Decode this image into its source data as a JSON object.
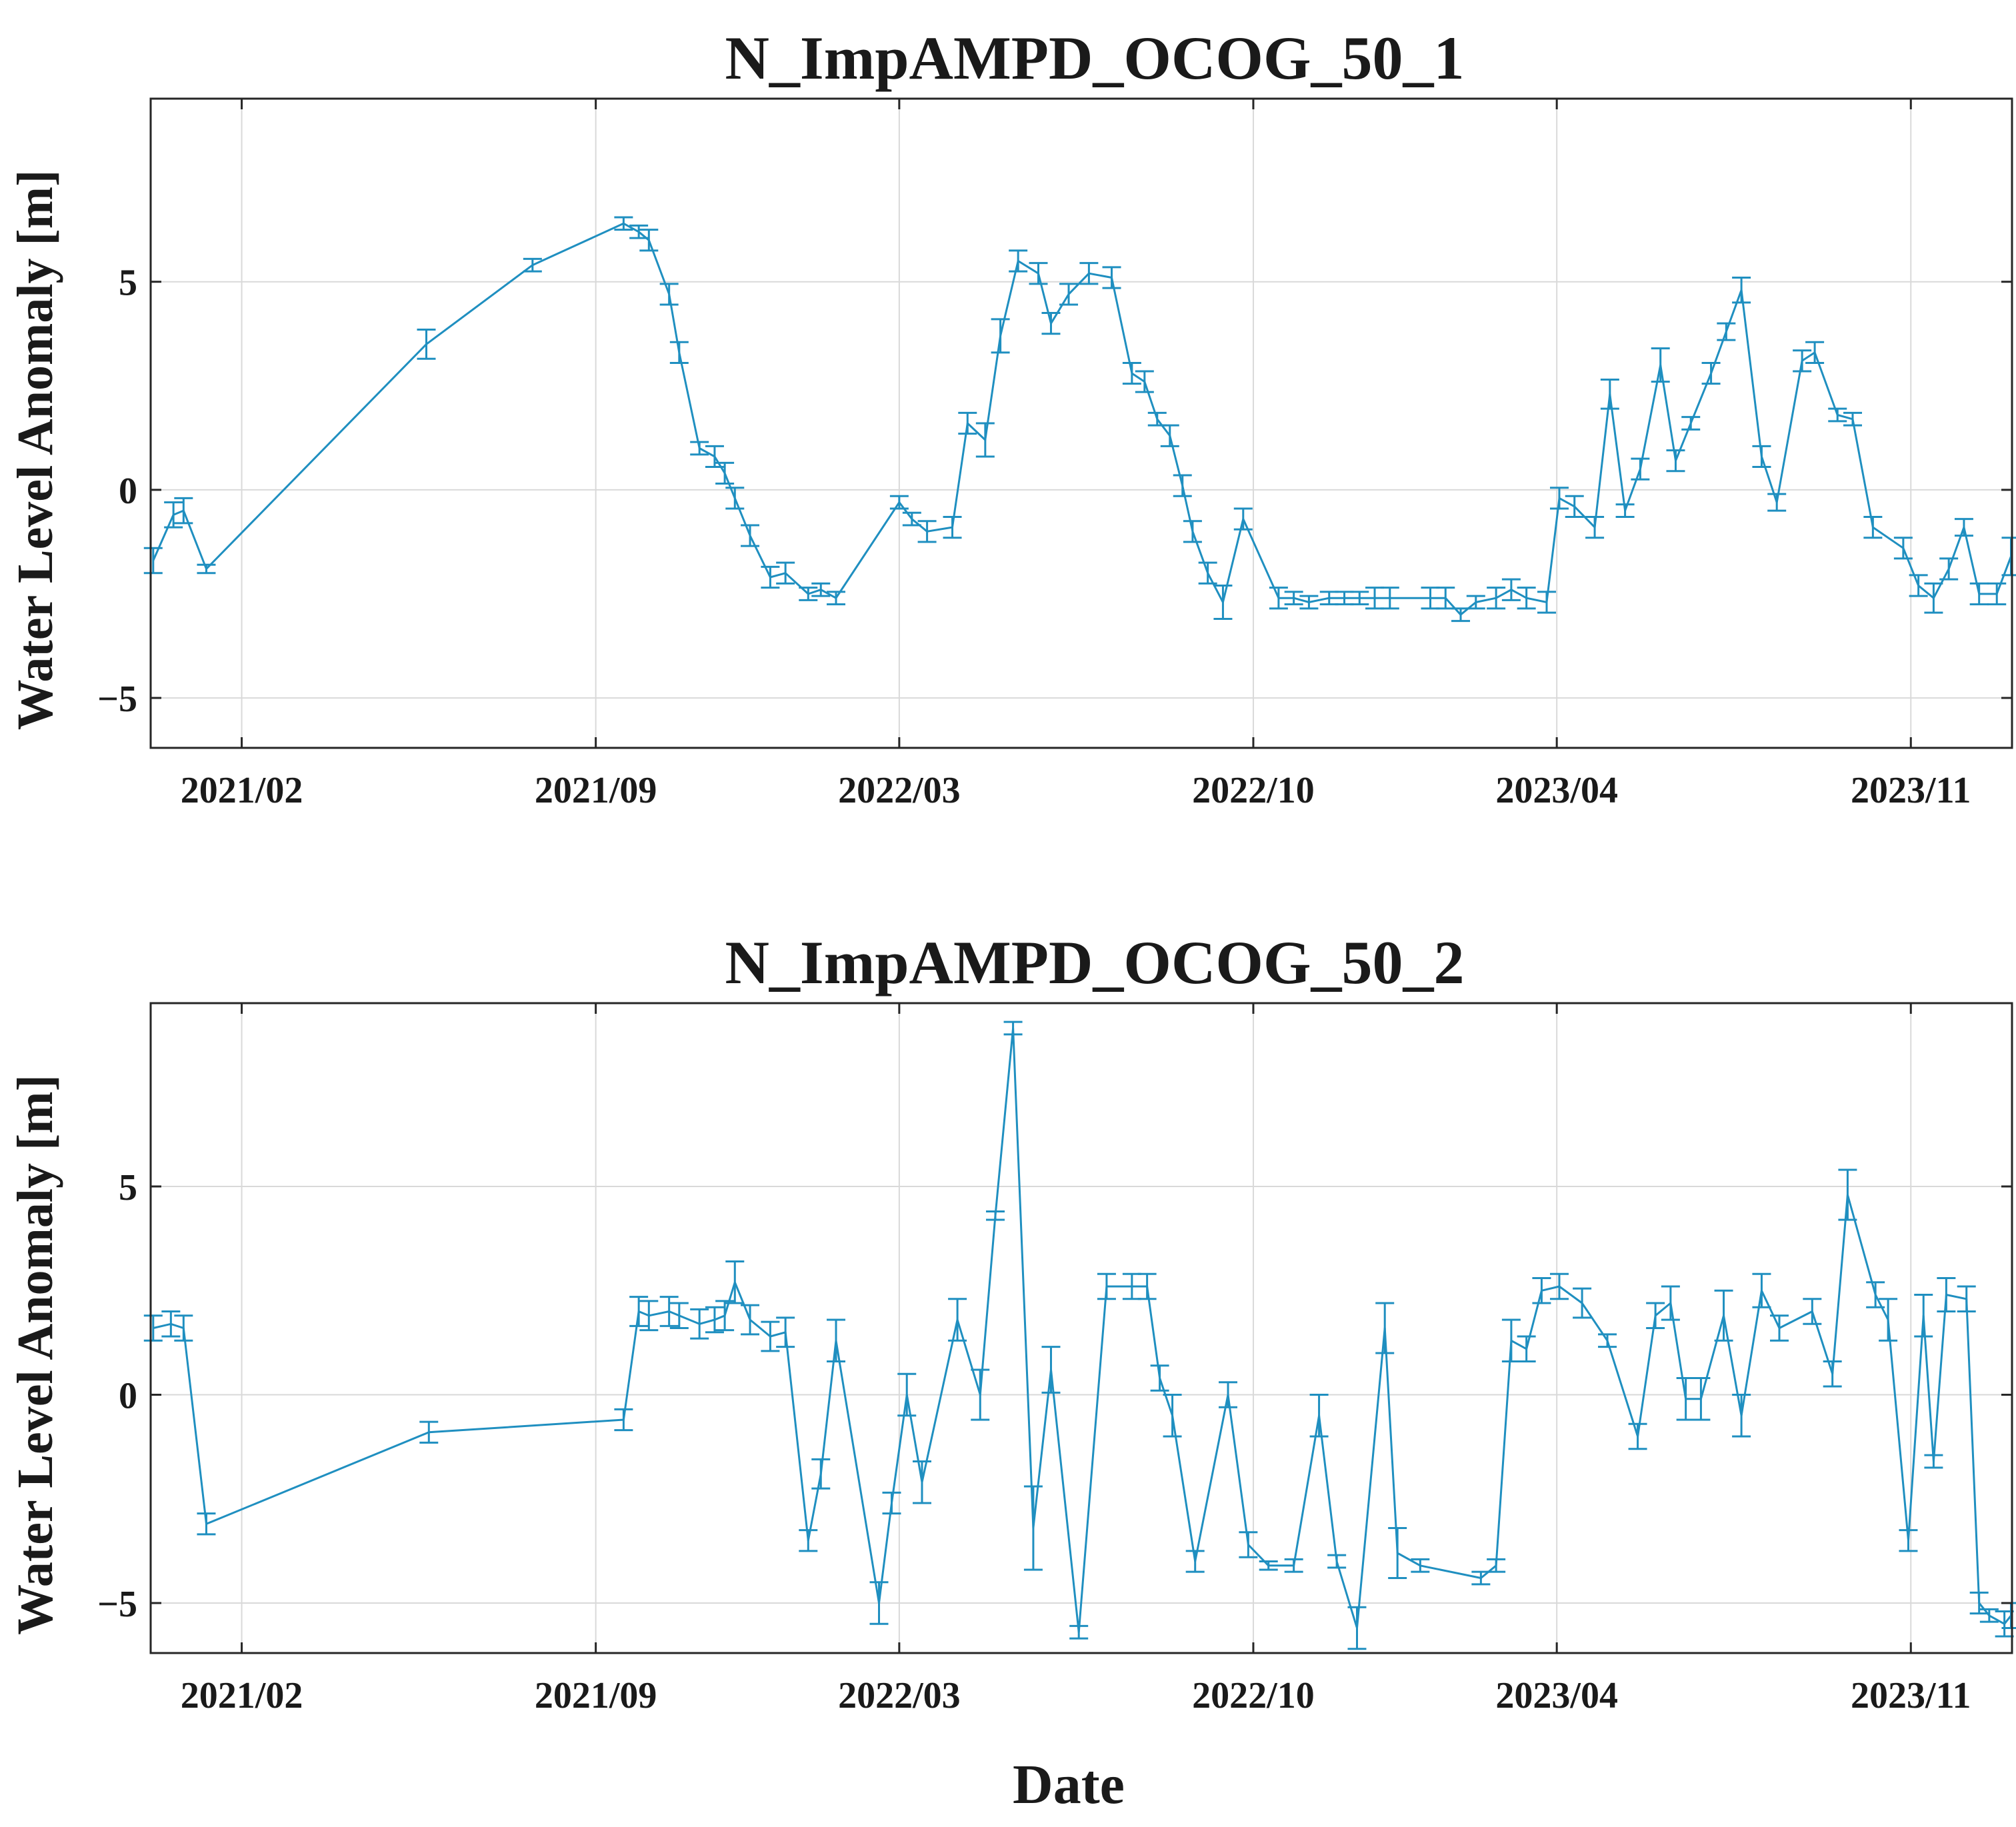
{
  "figure": {
    "xlabel": "Date"
  },
  "style": {
    "series_color": "#1f8fc0",
    "grid_color": "#d9d9d9",
    "axis_color": "#262626"
  },
  "chart_data": [
    {
      "type": "line",
      "title": "N_ImpAMPD_OCOG_50_1",
      "xlabel": "",
      "ylabel": "Water Level Anomaly [m]",
      "x_unit": "months since 2021-01",
      "xlim": [
        -0.8,
        36.0
      ],
      "ylim": [
        -6.2,
        9.4
      ],
      "yticks": [
        -5,
        0,
        5
      ],
      "xticks": [
        {
          "value": 1,
          "label": "2021/02"
        },
        {
          "value": 8,
          "label": "2021/09"
        },
        {
          "value": 14,
          "label": "2022/03"
        },
        {
          "value": 21,
          "label": "2022/10"
        },
        {
          "value": 27,
          "label": "2023/04"
        },
        {
          "value": 34,
          "label": "2023/11"
        }
      ],
      "grid": true,
      "series": [
        {
          "name": "N_ImpAMPD_OCOG_50_1",
          "x": [
            -0.75,
            -0.35,
            -0.15,
            0.3,
            4.65,
            6.75,
            8.55,
            8.85,
            9.05,
            9.45,
            9.65,
            10.05,
            10.35,
            10.55,
            10.75,
            11.05,
            11.45,
            11.75,
            12.2,
            12.45,
            12.75,
            14.0,
            14.25,
            14.55,
            15.05,
            15.35,
            15.7,
            16.0,
            16.35,
            16.75,
            17.0,
            17.35,
            17.75,
            18.2,
            18.6,
            18.85,
            19.1,
            19.35,
            19.6,
            19.8,
            20.1,
            20.4,
            20.8,
            21.5,
            21.8,
            22.1,
            22.5,
            22.8,
            23.1,
            23.4,
            23.7,
            24.5,
            24.8,
            25.1,
            25.4,
            25.8,
            26.1,
            26.4,
            26.8,
            27.05,
            27.35,
            27.75,
            28.05,
            28.35,
            28.65,
            29.05,
            29.35,
            29.65,
            30.05,
            30.35,
            30.65,
            31.05,
            31.35,
            31.85,
            32.1,
            32.55,
            32.85,
            33.25,
            33.85,
            34.15,
            34.45,
            34.75,
            35.05,
            35.35,
            35.7,
            35.98
          ],
          "y": [
            -1.7,
            -0.6,
            -0.5,
            -1.9,
            3.5,
            5.4,
            6.4,
            6.2,
            6.0,
            4.7,
            3.3,
            1.0,
            0.8,
            0.4,
            -0.2,
            -1.1,
            -2.1,
            -2.0,
            -2.5,
            -2.4,
            -2.6,
            -0.3,
            -0.7,
            -1.0,
            -0.9,
            1.6,
            1.2,
            3.7,
            5.5,
            5.2,
            4.0,
            4.7,
            5.2,
            5.1,
            2.8,
            2.6,
            1.7,
            1.3,
            0.1,
            -1.0,
            -2.0,
            -2.7,
            -0.7,
            -2.6,
            -2.6,
            -2.7,
            -2.6,
            -2.6,
            -2.6,
            -2.6,
            -2.6,
            -2.6,
            -2.6,
            -3.0,
            -2.7,
            -2.6,
            -2.4,
            -2.6,
            -2.7,
            -0.2,
            -0.4,
            -0.9,
            2.3,
            -0.5,
            0.5,
            3.0,
            0.7,
            1.6,
            2.8,
            3.8,
            4.8,
            0.8,
            -0.3,
            3.1,
            3.3,
            1.8,
            1.7,
            -0.9,
            -1.4,
            -2.3,
            -2.6,
            -1.9,
            -0.9,
            -2.5,
            -2.5,
            -1.6
          ],
          "err": [
            0.3,
            0.3,
            0.3,
            0.1,
            0.35,
            0.15,
            0.15,
            0.15,
            0.25,
            0.25,
            0.25,
            0.15,
            0.25,
            0.25,
            0.25,
            0.25,
            0.25,
            0.25,
            0.15,
            0.15,
            0.15,
            0.15,
            0.15,
            0.25,
            0.25,
            0.25,
            0.4,
            0.4,
            0.25,
            0.25,
            0.25,
            0.25,
            0.25,
            0.25,
            0.25,
            0.25,
            0.15,
            0.25,
            0.25,
            0.25,
            0.25,
            0.4,
            0.25,
            0.25,
            0.15,
            0.15,
            0.15,
            0.15,
            0.15,
            0.25,
            0.25,
            0.25,
            0.25,
            0.15,
            0.15,
            0.25,
            0.25,
            0.25,
            0.25,
            0.25,
            0.25,
            0.25,
            0.35,
            0.15,
            0.25,
            0.4,
            0.25,
            0.15,
            0.25,
            0.2,
            0.3,
            0.25,
            0.2,
            0.25,
            0.25,
            0.15,
            0.15,
            0.25,
            0.25,
            0.25,
            0.35,
            0.25,
            0.2,
            0.25,
            0.25,
            0.45
          ]
        }
      ]
    },
    {
      "type": "line",
      "title": "N_ImpAMPD_OCOG_50_2",
      "xlabel": "Date",
      "ylabel": "Water Level Anomaly [m]",
      "x_unit": "months since 2021-01",
      "xlim": [
        -0.8,
        36.0
      ],
      "ylim": [
        -6.2,
        9.4
      ],
      "yticks": [
        -5,
        0,
        5
      ],
      "xticks": [
        {
          "value": 1,
          "label": "2021/02"
        },
        {
          "value": 8,
          "label": "2021/09"
        },
        {
          "value": 14,
          "label": "2022/03"
        },
        {
          "value": 21,
          "label": "2022/10"
        },
        {
          "value": 27,
          "label": "2023/04"
        },
        {
          "value": 34,
          "label": "2023/11"
        }
      ],
      "grid": true,
      "series": [
        {
          "name": "N_ImpAMPD_OCOG_50_2",
          "x": [
            -0.75,
            -0.4,
            -0.15,
            0.3,
            4.7,
            8.55,
            8.85,
            9.05,
            9.45,
            9.65,
            10.05,
            10.35,
            10.55,
            10.75,
            11.05,
            11.45,
            11.75,
            12.2,
            12.45,
            12.75,
            13.6,
            13.85,
            14.15,
            14.45,
            15.15,
            15.6,
            15.9,
            16.25,
            16.65,
            17.0,
            17.55,
            18.1,
            18.6,
            18.9,
            19.15,
            19.4,
            19.85,
            20.5,
            20.9,
            21.3,
            21.8,
            22.3,
            22.65,
            23.05,
            23.6,
            23.85,
            24.3,
            25.5,
            25.8,
            26.1,
            26.4,
            26.7,
            27.05,
            27.5,
            28.0,
            28.6,
            28.95,
            29.25,
            29.55,
            29.85,
            30.3,
            30.65,
            31.05,
            31.4,
            32.05,
            32.45,
            32.75,
            33.3,
            33.55,
            33.95,
            34.25,
            34.45,
            34.7,
            35.1,
            35.35,
            35.55,
            35.85,
            35.98
          ],
          "y": [
            1.6,
            1.7,
            1.6,
            -3.1,
            -0.9,
            -0.6,
            2.0,
            1.9,
            2.0,
            1.9,
            1.7,
            1.8,
            1.9,
            2.7,
            1.8,
            1.4,
            1.5,
            -3.5,
            -1.9,
            1.3,
            -5.0,
            -2.6,
            0.0,
            -2.1,
            1.8,
            0.0,
            4.3,
            8.8,
            -3.2,
            0.6,
            -5.7,
            2.6,
            2.6,
            2.6,
            0.4,
            -0.5,
            -4.0,
            0.0,
            -3.6,
            -4.1,
            -4.1,
            -0.5,
            -4.0,
            -5.6,
            1.6,
            -3.8,
            -4.1,
            -4.4,
            -4.1,
            1.3,
            1.1,
            2.5,
            2.6,
            2.2,
            1.3,
            -1.0,
            1.9,
            2.2,
            -0.1,
            -0.1,
            1.9,
            -0.5,
            2.5,
            1.6,
            2.0,
            0.5,
            4.8,
            2.4,
            1.8,
            -3.5,
            1.9,
            -1.6,
            2.4,
            2.3,
            -5.0,
            -5.3,
            -5.5,
            -5.3
          ],
          "err": [
            0.3,
            0.3,
            0.3,
            0.25,
            0.25,
            0.25,
            0.35,
            0.35,
            0.35,
            0.3,
            0.35,
            0.3,
            0.35,
            0.5,
            0.35,
            0.35,
            0.35,
            0.25,
            0.35,
            0.5,
            0.5,
            0.25,
            0.5,
            0.5,
            0.5,
            0.6,
            0.1,
            0.15,
            1.0,
            0.55,
            0.15,
            0.3,
            0.3,
            0.3,
            0.3,
            0.5,
            0.25,
            0.3,
            0.3,
            0.1,
            0.15,
            0.5,
            0.15,
            0.5,
            0.6,
            0.6,
            0.15,
            0.15,
            0.15,
            0.5,
            0.3,
            0.3,
            0.3,
            0.35,
            0.15,
            0.3,
            0.3,
            0.4,
            0.5,
            0.5,
            0.6,
            0.5,
            0.4,
            0.3,
            0.3,
            0.3,
            0.6,
            0.3,
            0.5,
            0.25,
            0.5,
            0.15,
            0.4,
            0.3,
            0.25,
            0.15,
            0.3,
            0.3
          ]
        }
      ]
    }
  ]
}
